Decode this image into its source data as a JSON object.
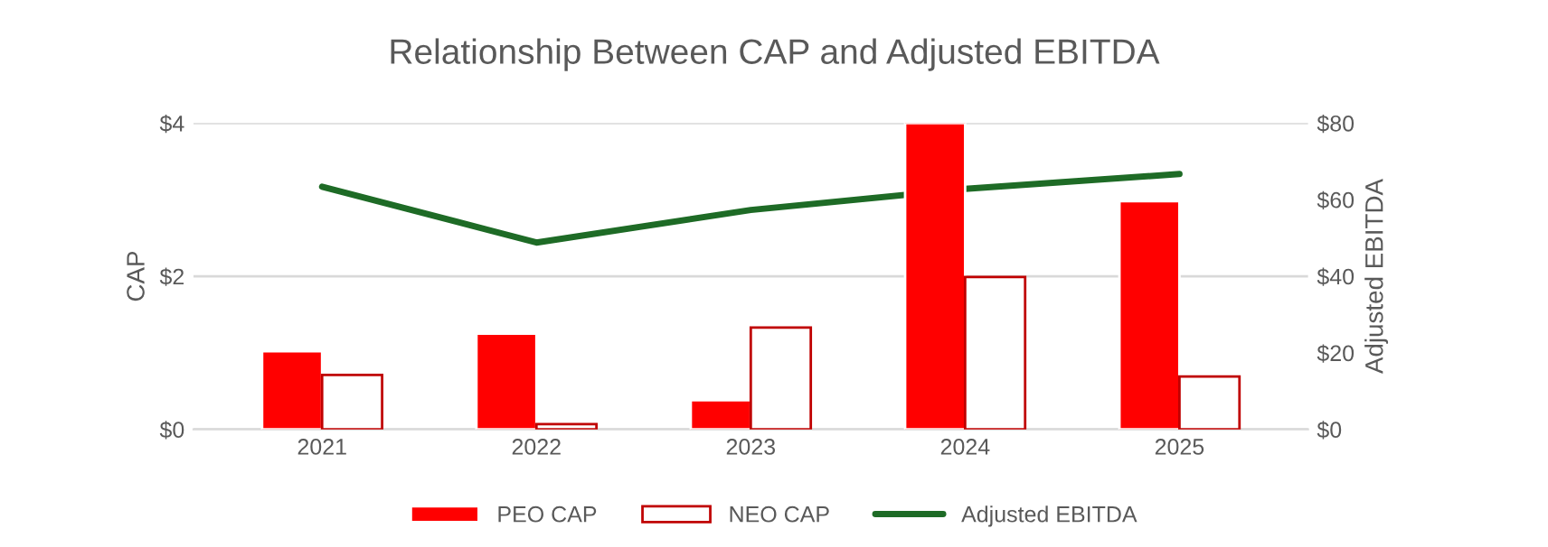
{
  "chart_data": {
    "type": "bar",
    "title": "Relationship Between CAP and Adjusted EBITDA",
    "ylabel": "CAP",
    "y2label": "Adjusted EBITDA",
    "categories": [
      "2021",
      "2022",
      "2023",
      "2024",
      "2025"
    ],
    "series": [
      {
        "name": "PEO CAP",
        "color": "#ff0000",
        "values": [
          1.02,
          1.25,
          0.38,
          4.0,
          2.98
        ]
      },
      {
        "name": "NEO CAP",
        "color": "#c00000",
        "values": [
          0.71,
          0.07,
          1.33,
          1.99,
          0.69
        ]
      },
      {
        "name": "Adjusted EBITDA",
        "type": "line",
        "axis": "y2",
        "color": "#1e6b26",
        "values": [
          63.4,
          48.8,
          57.3,
          62.8,
          66.7
        ]
      }
    ],
    "ylim": [
      0,
      4
    ],
    "yticks": [
      {
        "value": 0,
        "label": "$0"
      },
      {
        "value": 2,
        "label": "$2"
      },
      {
        "value": 4,
        "label": "$4"
      }
    ],
    "y2lim": [
      0,
      80
    ],
    "y2ticks": [
      {
        "value": 0,
        "label": "$0"
      },
      {
        "value": 20,
        "label": "$20"
      },
      {
        "value": 40,
        "label": "$40"
      },
      {
        "value": 60,
        "label": "$60"
      },
      {
        "value": 80,
        "label": "$80"
      }
    ],
    "grid": "y",
    "legend": "bottom"
  }
}
